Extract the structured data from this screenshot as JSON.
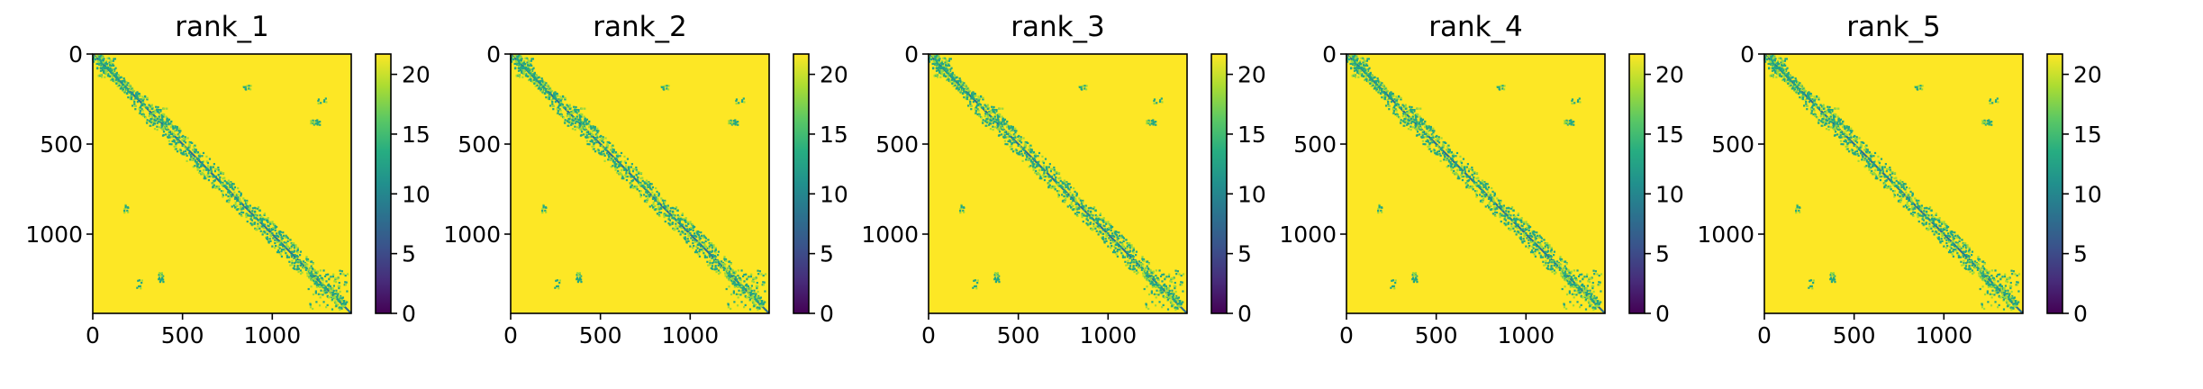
{
  "chart_data": [
    {
      "type": "heatmap",
      "title": "rank_1",
      "xlim": [
        0,
        1440
      ],
      "ylim": [
        1440,
        0
      ],
      "xticks": [
        0,
        500,
        1000
      ],
      "xtick_labels": [
        "0",
        "500",
        "1000"
      ],
      "yticks": [
        0,
        500,
        1000
      ],
      "ytick_labels": [
        "0",
        "500",
        "1000"
      ],
      "colorbar": {
        "range": [
          0,
          21.7
        ],
        "ticks": [
          0,
          5,
          10,
          15,
          20
        ],
        "tick_labels": [
          "0",
          "5",
          "10",
          "15",
          "20"
        ],
        "colormap": "viridis"
      },
      "description_values": {
        "background": 21.7,
        "diagonal_min": 0
      }
    },
    {
      "type": "heatmap",
      "title": "rank_2",
      "xlim": [
        0,
        1440
      ],
      "ylim": [
        1440,
        0
      ],
      "xticks": [
        0,
        500,
        1000
      ],
      "xtick_labels": [
        "0",
        "500",
        "1000"
      ],
      "yticks": [
        0,
        500,
        1000
      ],
      "ytick_labels": [
        "0",
        "500",
        "1000"
      ],
      "colorbar": {
        "range": [
          0,
          21.7
        ],
        "ticks": [
          0,
          5,
          10,
          15,
          20
        ],
        "tick_labels": [
          "0",
          "5",
          "10",
          "15",
          "20"
        ],
        "colormap": "viridis"
      },
      "description_values": {
        "background": 21.7,
        "diagonal_min": 0
      }
    },
    {
      "type": "heatmap",
      "title": "rank_3",
      "xlim": [
        0,
        1440
      ],
      "ylim": [
        1440,
        0
      ],
      "xticks": [
        0,
        500,
        1000
      ],
      "xtick_labels": [
        "0",
        "500",
        "1000"
      ],
      "yticks": [
        0,
        500,
        1000
      ],
      "ytick_labels": [
        "0",
        "500",
        "1000"
      ],
      "colorbar": {
        "range": [
          0,
          21.7
        ],
        "ticks": [
          0,
          5,
          10,
          15,
          20
        ],
        "tick_labels": [
          "0",
          "5",
          "10",
          "15",
          "20"
        ],
        "colormap": "viridis"
      },
      "description_values": {
        "background": 21.7,
        "diagonal_min": 0
      }
    },
    {
      "type": "heatmap",
      "title": "rank_4",
      "xlim": [
        0,
        1440
      ],
      "ylim": [
        1440,
        0
      ],
      "xticks": [
        0,
        500,
        1000
      ],
      "xtick_labels": [
        "0",
        "500",
        "1000"
      ],
      "yticks": [
        0,
        500,
        1000
      ],
      "ytick_labels": [
        "0",
        "500",
        "1000"
      ],
      "colorbar": {
        "range": [
          0,
          21.7
        ],
        "ticks": [
          0,
          5,
          10,
          15,
          20
        ],
        "tick_labels": [
          "0",
          "5",
          "10",
          "15",
          "20"
        ],
        "colormap": "viridis"
      },
      "description_values": {
        "background": 21.7,
        "diagonal_min": 0
      }
    },
    {
      "type": "heatmap",
      "title": "rank_5",
      "xlim": [
        0,
        1440
      ],
      "ylim": [
        1440,
        0
      ],
      "xticks": [
        0,
        500,
        1000
      ],
      "xtick_labels": [
        "0",
        "500",
        "1000"
      ],
      "yticks": [
        0,
        500,
        1000
      ],
      "ytick_labels": [
        "0",
        "500",
        "1000"
      ],
      "colorbar": {
        "range": [
          0,
          21.7
        ],
        "ticks": [
          0,
          5,
          10,
          15,
          20
        ],
        "tick_labels": [
          "0",
          "5",
          "10",
          "15",
          "20"
        ],
        "colormap": "viridis"
      },
      "description_values": {
        "background": 21.7,
        "diagonal_min": 0
      }
    }
  ],
  "colors": {
    "viridis_stops": [
      "#440154",
      "#472c7a",
      "#3b518b",
      "#2c718e",
      "#21908d",
      "#27ad81",
      "#5cc863",
      "#aadc32",
      "#fde725"
    ],
    "background": "#fde725",
    "diagonal": "#2c6f8e",
    "contact": "#21a685",
    "contact_light": "#9bd93c"
  }
}
